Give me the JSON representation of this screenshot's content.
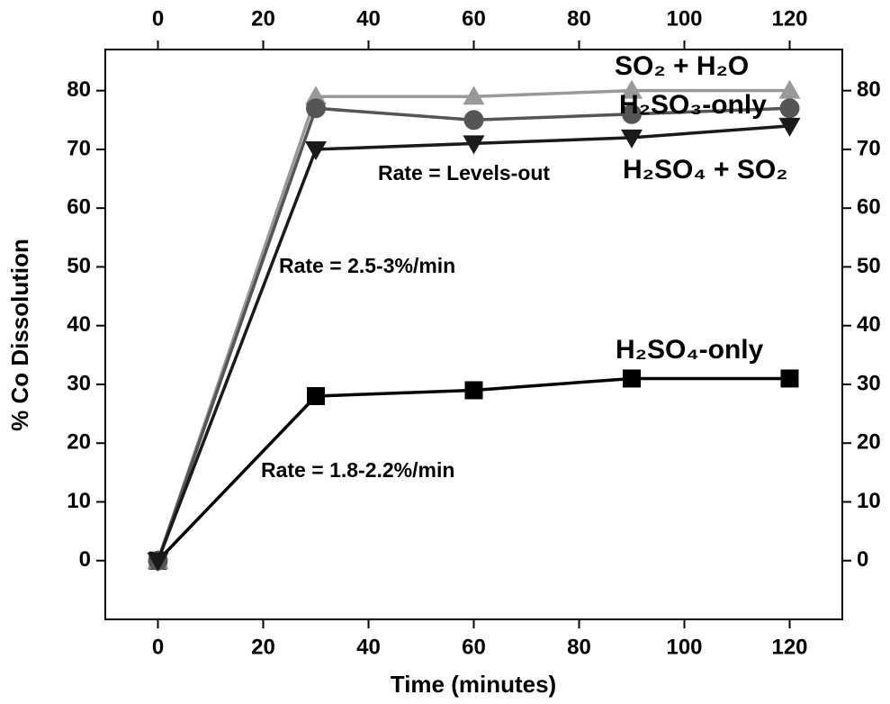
{
  "chart_data": {
    "type": "line",
    "x_label": "Time (minutes)",
    "y_label": "% Co Dissolution",
    "x": [
      0,
      30,
      60,
      90,
      120
    ],
    "series": [
      {
        "name": "H₂SO₄-only",
        "color": "#000000",
        "marker": "square",
        "values": [
          0,
          28,
          29,
          31,
          31
        ]
      },
      {
        "name": "SO₂ + H₂O",
        "color": "#999999",
        "marker": "triangle-up",
        "values": [
          0,
          79,
          79,
          80,
          80
        ]
      },
      {
        "name": "H₂SO₃-only",
        "color": "#555555",
        "marker": "circle",
        "values": [
          0,
          77,
          75,
          76,
          77
        ]
      },
      {
        "name": "H₂SO₄ + SO₂",
        "color": "#1a1a1a",
        "marker": "triangle-down",
        "values": [
          0,
          70,
          71,
          72,
          74
        ]
      }
    ],
    "annotations": [
      "Rate = Levels-out",
      "Rate = 2.5-3%/min",
      "Rate = 1.8-2.2%/min"
    ],
    "xlim": [
      -10,
      130
    ],
    "xticks": [
      0,
      20,
      40,
      60,
      80,
      100,
      120
    ],
    "ylim": [
      -10,
      87
    ],
    "yticks": [
      0,
      10,
      20,
      30,
      40,
      50,
      60,
      70,
      80
    ]
  }
}
